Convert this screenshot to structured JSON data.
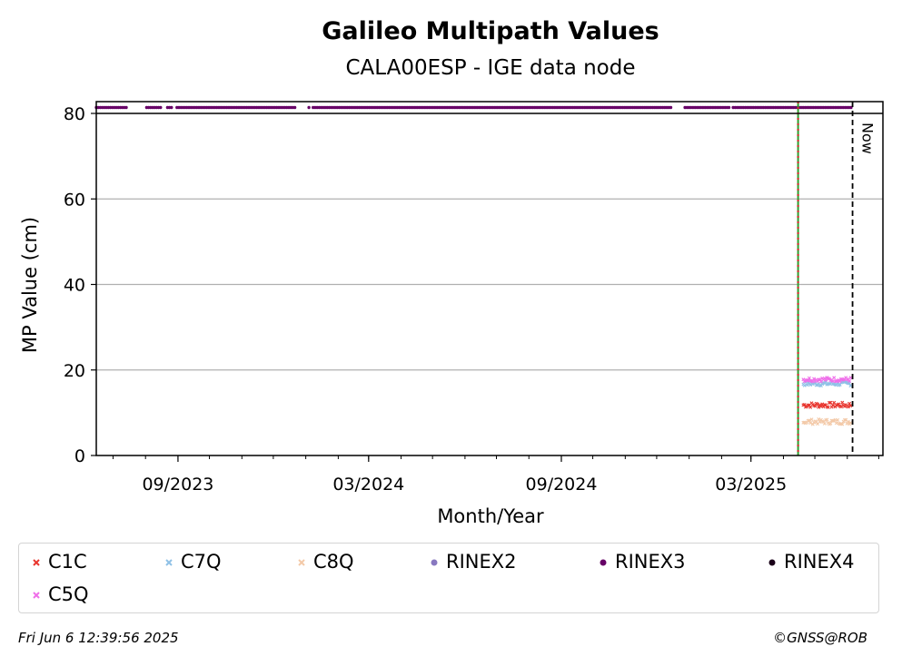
{
  "chart_data": {
    "type": "scatter",
    "title": "Galileo Multipath Values",
    "subtitle": "CALA00ESP - IGE data node",
    "xlabel": "Month/Year",
    "ylabel": "MP Value (cm)",
    "x_range": [
      "2023-06-15",
      "2025-07-05"
    ],
    "ylim": [
      0,
      80
    ],
    "yticks": [
      0,
      20,
      40,
      60,
      80
    ],
    "ytick_labels": [
      "0",
      "20",
      "40",
      "60",
      "80"
    ],
    "xticks": [
      "2023-09-01",
      "2024-03-01",
      "2024-09-01",
      "2025-03-01"
    ],
    "xtick_labels": [
      "09/2023",
      "03/2024",
      "09/2024",
      "03/2025"
    ],
    "grid": "y",
    "legend_position": "below",
    "series": [
      {
        "name": "C1C",
        "marker": "x",
        "color": "#e8352e",
        "x_range": [
          "2025-04-20",
          "2025-06-05"
        ],
        "mean": 11.8,
        "noise": 0.6
      },
      {
        "name": "C7Q",
        "marker": "x",
        "color": "#8fc1e6",
        "x_range": [
          "2025-04-20",
          "2025-06-05"
        ],
        "mean": 16.8,
        "noise": 0.5
      },
      {
        "name": "C8Q",
        "marker": "x",
        "color": "#f3c9a8",
        "x_range": [
          "2025-04-20",
          "2025-06-05"
        ],
        "mean": 7.9,
        "noise": 0.6
      },
      {
        "name": "RINEX2",
        "marker": "o",
        "color": "#8878c0"
      },
      {
        "name": "RINEX3",
        "marker": "o",
        "color": "#660066",
        "availability_segments": [
          [
            "2023-06-15",
            "2023-07-14"
          ],
          [
            "2023-08-02",
            "2023-08-16"
          ],
          [
            "2023-08-22",
            "2023-08-27"
          ],
          [
            "2023-08-31",
            "2023-12-22"
          ],
          [
            "2024-01-04",
            "2024-01-05"
          ],
          [
            "2024-01-08",
            "2024-12-15"
          ],
          [
            "2024-12-28",
            "2025-02-09"
          ],
          [
            "2025-02-12",
            "2025-06-05"
          ]
        ]
      },
      {
        "name": "RINEX4",
        "marker": "o",
        "color": "#1a0019"
      },
      {
        "name": "C5Q",
        "marker": "x",
        "color": "#ef6ee9",
        "x_range": [
          "2025-04-20",
          "2025-06-05"
        ],
        "mean": 17.8,
        "noise": 0.5
      }
    ],
    "vertical_lines": [
      {
        "x": "2025-04-15",
        "style": "dotted",
        "color": "#2e9e2e",
        "color2": "#d62728"
      },
      {
        "x": "2025-06-06",
        "style": "dashed",
        "color": "#000000",
        "label": "Now"
      }
    ],
    "availability_y": 81.5
  },
  "footer": {
    "timestamp": "Fri Jun  6 12:39:56 2025",
    "copyright": "©GNSS@ROB"
  }
}
